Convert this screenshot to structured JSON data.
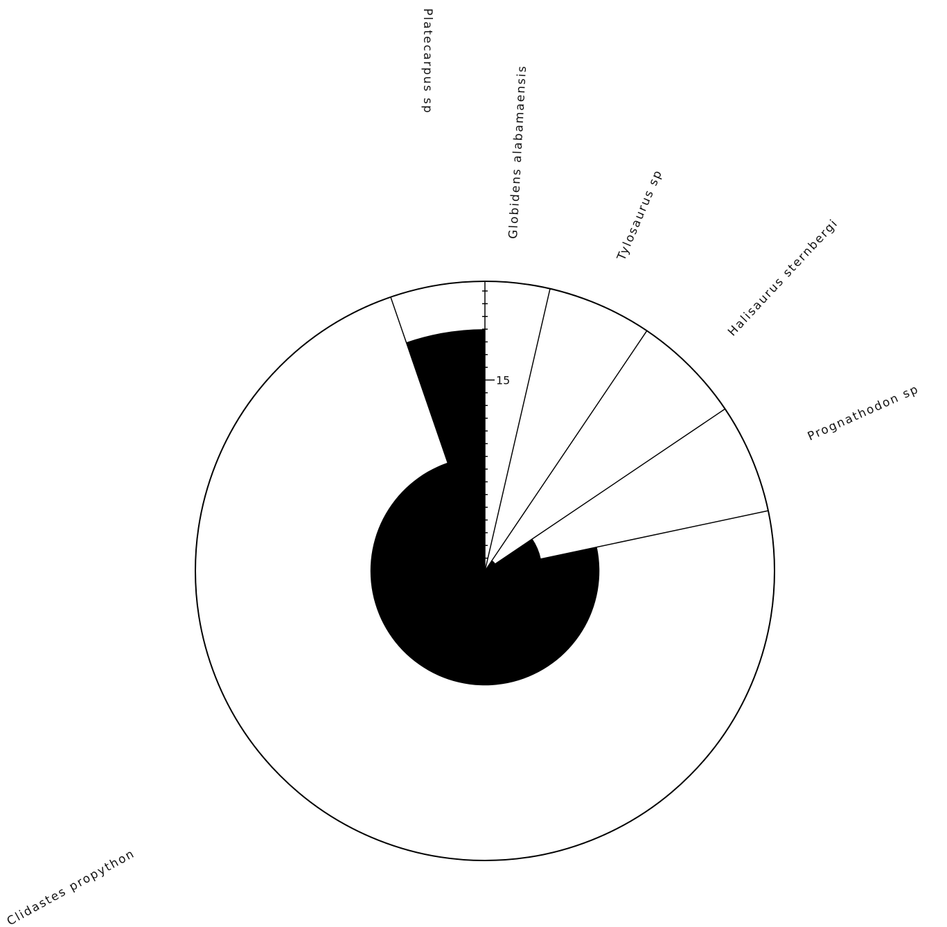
{
  "chart_data": {
    "type": "polar-area",
    "scale_tick_label": "15",
    "scale_max": 22,
    "scale_tick_step": 1,
    "grid": false,
    "legend": "none",
    "colors": {
      "fill": "#000000",
      "line": "#000000",
      "background": "#ffffff"
    },
    "categories": [
      {
        "name": "Globidens alabamaensis",
        "start_deg": 0,
        "end_deg": 13,
        "value": 0
      },
      {
        "name": "Tylosaurus sp",
        "start_deg": 13,
        "end_deg": 34,
        "value": 0
      },
      {
        "name": "Halisaurus sternbergi",
        "start_deg": 34,
        "end_deg": 56,
        "value": 1
      },
      {
        "name": "Prognathodon sp",
        "start_deg": 56,
        "end_deg": 78,
        "value": 4.5
      },
      {
        "name": "Clidastes propython",
        "start_deg": 78,
        "end_deg": 341,
        "value": 9
      },
      {
        "name": "Platecarpus sp",
        "start_deg": 341,
        "end_deg": 360,
        "value": 19
      }
    ],
    "labels": [
      {
        "text": "Platecarpus sp"
      },
      {
        "text": "Globidens alabamaensis"
      },
      {
        "text": "Tylosaurus sp"
      },
      {
        "text": "Halisaurus sternbergi"
      },
      {
        "text": "Prognathodon sp"
      },
      {
        "text": "Clidastes propython"
      }
    ]
  }
}
